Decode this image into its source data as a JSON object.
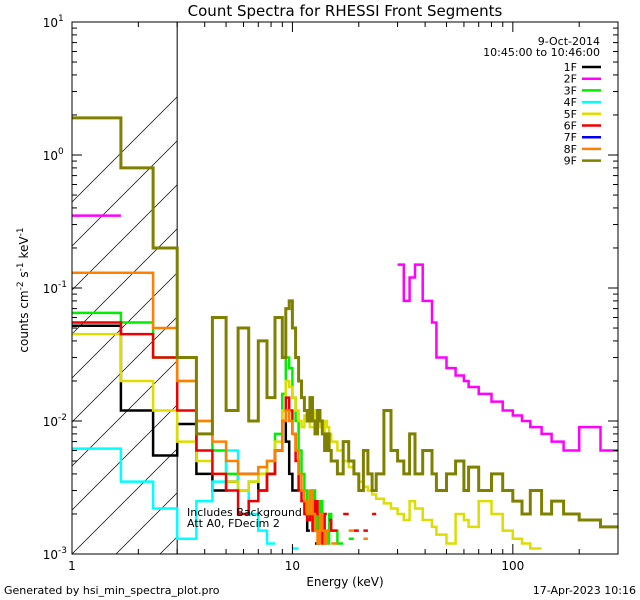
{
  "chart_data": {
    "type": "line",
    "title": "Count Spectra for RHESSI Front Segments",
    "xlabel": "Energy (keV)",
    "ylabel_base": "counts cm",
    "ylabel_sup1": "-2",
    "ylabel_mid": " s",
    "ylabel_sup2": "-1",
    "ylabel_end": " keV",
    "ylabel_sup3": "-1",
    "x_scale": "log",
    "y_scale": "log",
    "xlim": [
      1,
      300
    ],
    "ylim": [
      0.001,
      10
    ],
    "x_ticks": [
      {
        "value": 1,
        "label": "1"
      },
      {
        "value": 10,
        "label": "10"
      },
      {
        "value": 100,
        "label": "100"
      }
    ],
    "y_ticks": [
      {
        "value": 0.001,
        "base": "10",
        "exp": "-3"
      },
      {
        "value": 0.01,
        "base": "10",
        "exp": "-2"
      },
      {
        "value": 0.1,
        "base": "10",
        "exp": "-1"
      },
      {
        "value": 1,
        "base": "10",
        "exp": "0"
      },
      {
        "value": 10,
        "base": "10",
        "exp": "1"
      }
    ],
    "date": "9-Oct-2014",
    "time_range": "10:45:00 to 10:46:00",
    "legend_placement": "top-right",
    "shaded_region_xmax": 3,
    "annotation_lines": [
      "Includes Background",
      "Att A0, FDecim 2"
    ],
    "footer_left": "Generated by hsi_min_spectra_plot.pro",
    "footer_right": "17-Apr-2023 10:16",
    "bin_edges": [
      1.0,
      1.333,
      1.667,
      2.0,
      2.333,
      2.667,
      3.0,
      3.333,
      3.667,
      4.0,
      4.333,
      4.667,
      5.0,
      5.333,
      5.667,
      6.0,
      6.333,
      6.667,
      7.0,
      7.333,
      7.667,
      8.0,
      8.333,
      8.667,
      9.0,
      9.333,
      9.667,
      10.0,
      10.333,
      10.667,
      11.0,
      11.333,
      11.667,
      12.0,
      12.333,
      12.667,
      13.0,
      13.333,
      13.667,
      14.0,
      14.333,
      14.667,
      15.0,
      16.0,
      17.0,
      18.0,
      19.0,
      20.0,
      21.0,
      22.0,
      23.0,
      24.0,
      26.0,
      28.0,
      30.0,
      32.0,
      34.0,
      36.0,
      39.0,
      43.0,
      45.0,
      50.0,
      55.0,
      60.0,
      63.0,
      70.0,
      80.0,
      90.0,
      100.0,
      110.0,
      120.0,
      135.0,
      150.0,
      170.0,
      200.0,
      250.0,
      300.0
    ],
    "series": [
      {
        "name": "1F",
        "color": "#000000",
        "width": 2.5,
        "values": [
          0.052,
          0.052,
          0.012,
          0.012,
          0.0055,
          0.0055,
          0.0095,
          0.0095,
          0.004,
          0.004,
          0.003,
          0.003,
          0.0035,
          0.0035,
          0.004,
          0.004,
          0.004,
          0.004,
          0.003,
          0.003,
          0.004,
          0.004,
          0.006,
          0.006,
          0.012,
          0.007,
          0.004,
          0.003,
          0.003,
          null,
          null,
          0.002,
          0.0015,
          null,
          null,
          0.0012,
          0.0012,
          null,
          null,
          null,
          null,
          null,
          null,
          null,
          null,
          null,
          null,
          null,
          null,
          null,
          null,
          null,
          null,
          null,
          null,
          null,
          null,
          null,
          null,
          null,
          null,
          null,
          null,
          null,
          null,
          null,
          null,
          null,
          null,
          null,
          null,
          null,
          null,
          null,
          null,
          null
        ]
      },
      {
        "name": "2F",
        "color": "#ff00ff",
        "width": 2.5,
        "values": [
          0.35,
          0.35,
          null,
          null,
          null,
          null,
          null,
          null,
          null,
          null,
          null,
          null,
          null,
          null,
          null,
          null,
          null,
          null,
          null,
          null,
          null,
          null,
          null,
          null,
          null,
          null,
          null,
          null,
          null,
          null,
          null,
          null,
          null,
          null,
          null,
          null,
          null,
          null,
          null,
          null,
          null,
          null,
          null,
          null,
          null,
          null,
          null,
          null,
          null,
          null,
          null,
          null,
          null,
          null,
          0.15,
          0.08,
          0.12,
          0.15,
          0.08,
          0.055,
          0.03,
          0.025,
          0.022,
          0.02,
          0.018,
          0.016,
          0.014,
          0.012,
          0.011,
          0.01,
          0.009,
          0.008,
          0.007,
          0.006,
          0.009,
          0.006
        ]
      },
      {
        "name": "3F",
        "color": "#00ee00",
        "width": 2.5,
        "values": [
          0.065,
          0.065,
          0.055,
          0.055,
          0.03,
          0.03,
          0.02,
          0.02,
          0.01,
          0.01,
          0.006,
          0.006,
          0.004,
          0.004,
          0.003,
          0.003,
          0.0035,
          0.0035,
          0.004,
          0.004,
          0.005,
          0.005,
          0.008,
          0.008,
          0.016,
          0.03,
          0.025,
          0.015,
          0.01,
          0.006,
          0.004,
          0.003,
          0.002,
          0.0025,
          0.003,
          0.002,
          0.0015,
          0.0025,
          0.002,
          0.0015,
          0.0012,
          0.002,
          0.0015,
          0.0012,
          null,
          0.0013,
          null,
          null,
          null,
          null,
          null,
          null,
          null,
          null,
          null,
          null,
          null,
          null,
          null,
          null,
          null,
          null,
          null,
          null,
          null,
          null,
          null,
          null,
          null,
          null,
          null,
          null,
          null,
          null,
          null,
          null
        ]
      },
      {
        "name": "4F",
        "color": "#00ffff",
        "width": 2.5,
        "values": [
          0.0062,
          0.0062,
          0.0035,
          0.0035,
          0.0022,
          0.0022,
          0.0013,
          0.0013,
          0.0025,
          0.0025,
          0.0035,
          0.0035,
          0.006,
          0.006,
          0.003,
          0.003,
          0.002,
          0.002,
          0.0015,
          0.0015,
          0.0012,
          0.0012,
          null,
          null,
          null,
          null,
          null,
          0.0011,
          0.0011,
          null,
          null,
          null,
          null,
          null,
          null,
          null,
          null,
          null,
          null,
          null,
          null,
          null,
          null,
          null,
          null,
          null,
          null,
          null,
          null,
          null,
          null,
          null,
          null,
          null,
          null,
          null,
          null,
          null,
          null,
          null,
          null,
          null,
          null,
          null,
          null,
          null,
          null,
          null,
          null,
          null,
          null,
          null,
          null,
          null,
          null,
          null
        ]
      },
      {
        "name": "5F",
        "color": "#dddd00",
        "width": 2.5,
        "values": [
          0.045,
          0.045,
          0.02,
          0.02,
          0.012,
          0.012,
          0.007,
          0.007,
          0.005,
          0.005,
          0.004,
          0.004,
          0.0035,
          0.0035,
          0.003,
          0.003,
          0.0035,
          0.0035,
          0.004,
          0.004,
          0.005,
          0.005,
          0.007,
          0.007,
          0.012,
          0.02,
          0.018,
          0.015,
          0.012,
          0.01,
          0.009,
          0.011,
          0.01,
          0.009,
          0.009,
          0.012,
          0.011,
          0.009,
          0.008,
          0.01,
          0.009,
          0.008,
          0.007,
          0.006,
          0.005,
          0.0045,
          0.004,
          0.0035,
          0.0032,
          0.003,
          0.0028,
          0.0026,
          0.0024,
          0.0022,
          0.002,
          0.0018,
          0.0025,
          0.0022,
          0.0018,
          0.0016,
          0.0014,
          0.0012,
          0.002,
          0.0018,
          0.0016,
          0.0025,
          0.002,
          0.0015,
          0.0013,
          0.0012,
          0.0011,
          null,
          null,
          null,
          null,
          null
        ]
      },
      {
        "name": "6F",
        "color": "#ee0000",
        "width": 2.5,
        "values": [
          0.055,
          0.055,
          0.045,
          0.045,
          0.03,
          0.03,
          0.012,
          0.012,
          0.006,
          0.006,
          0.004,
          0.004,
          0.003,
          0.003,
          0.002,
          0.002,
          0.0025,
          0.0025,
          0.003,
          0.003,
          0.004,
          0.004,
          0.006,
          0.006,
          0.01,
          0.015,
          0.012,
          0.008,
          0.005,
          0.003,
          0.0025,
          0.002,
          0.0018,
          0.002,
          0.0015,
          0.0025,
          0.002,
          0.0015,
          0.0012,
          0.002,
          null,
          0.0018,
          0.0015,
          null,
          0.002,
          null,
          0.0015,
          null,
          0.0015,
          null,
          0.002,
          null,
          null,
          null,
          null,
          null,
          null,
          null,
          null,
          null,
          null,
          null,
          null,
          null,
          null,
          null,
          null,
          null,
          null,
          null,
          null,
          null,
          null,
          null,
          null,
          null
        ]
      },
      {
        "name": "7F",
        "color": "#0000ee",
        "width": 2.5,
        "values": [
          null,
          null,
          null,
          null,
          null,
          null,
          null,
          null,
          null,
          null,
          null,
          null,
          null,
          null,
          null,
          null,
          null,
          null,
          null,
          null,
          null,
          null,
          null,
          null,
          null,
          null,
          null,
          null,
          null,
          null,
          null,
          null,
          null,
          null,
          null,
          null,
          null,
          null,
          null,
          null,
          null,
          null,
          null,
          null,
          null,
          null,
          null,
          null,
          null,
          null,
          null,
          null,
          null,
          null,
          null,
          null,
          null,
          null,
          null,
          null,
          null,
          null,
          null,
          null,
          null,
          null,
          null,
          null,
          null,
          null,
          null,
          null,
          null,
          null,
          null,
          null
        ]
      },
      {
        "name": "8F",
        "color": "#ff8000",
        "width": 2.5,
        "values": [
          0.13,
          0.13,
          0.13,
          0.13,
          0.05,
          0.05,
          0.02,
          0.02,
          0.01,
          0.01,
          0.007,
          0.007,
          0.005,
          0.005,
          0.004,
          0.004,
          0.004,
          0.004,
          0.0045,
          0.0045,
          0.005,
          0.005,
          0.006,
          0.006,
          0.01,
          0.012,
          0.01,
          0.008,
          0.006,
          0.004,
          0.003,
          0.0025,
          0.002,
          0.003,
          0.002,
          0.0015,
          0.0012,
          0.002,
          0.0015,
          0.0012,
          0.0015,
          null,
          0.0012,
          null,
          null,
          0.0015,
          null,
          null,
          0.0013,
          null,
          null,
          null,
          null,
          null,
          null,
          null,
          null,
          null,
          null,
          null,
          null,
          null,
          null,
          null,
          null,
          null,
          null,
          null,
          null,
          null,
          null,
          null,
          null,
          null,
          null,
          null
        ]
      },
      {
        "name": "9F",
        "color": "#808000",
        "width": 3,
        "values": [
          1.9,
          1.9,
          0.8,
          0.8,
          0.2,
          0.2,
          0.03,
          0.03,
          0.008,
          0.008,
          0.06,
          0.06,
          0.012,
          0.012,
          0.05,
          0.05,
          0.01,
          0.01,
          0.04,
          0.04,
          0.015,
          0.015,
          0.06,
          0.06,
          0.03,
          0.07,
          0.08,
          0.05,
          0.03,
          0.02,
          0.015,
          0.012,
          0.01,
          0.015,
          0.01,
          0.008,
          0.012,
          0.01,
          0.008,
          0.006,
          0.008,
          0.006,
          0.005,
          0.004,
          0.007,
          0.005,
          0.004,
          0.003,
          0.006,
          0.004,
          0.003,
          0.004,
          0.012,
          0.006,
          0.005,
          0.004,
          0.008,
          0.004,
          0.006,
          0.004,
          0.003,
          0.004,
          0.005,
          0.003,
          0.0045,
          0.003,
          0.004,
          0.003,
          0.0025,
          0.002,
          0.003,
          0.002,
          0.0025,
          0.002,
          0.0018,
          0.0016
        ]
      }
    ]
  }
}
